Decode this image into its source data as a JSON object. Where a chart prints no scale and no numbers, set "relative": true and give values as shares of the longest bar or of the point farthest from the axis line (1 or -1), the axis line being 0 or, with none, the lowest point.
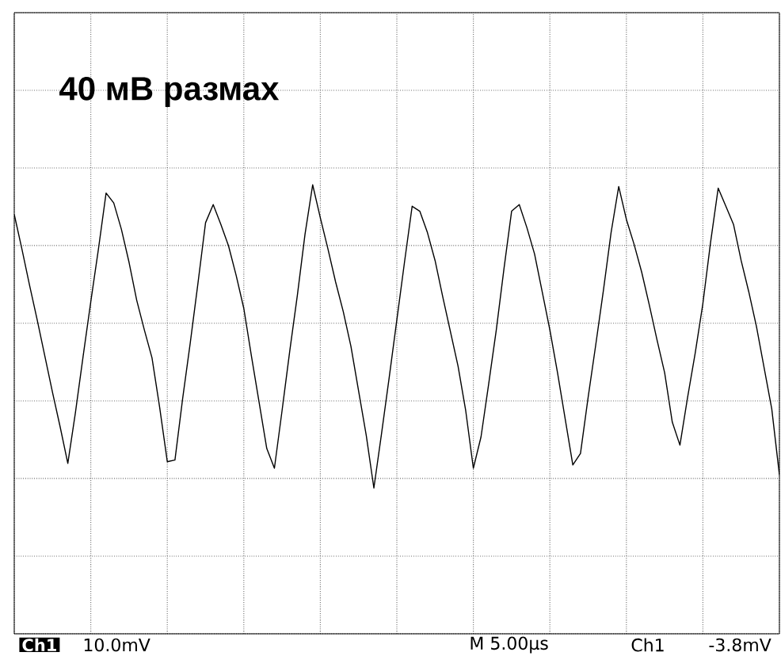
{
  "chart_data": {
    "type": "line",
    "relative": true,
    "grid": true,
    "color": "#000000",
    "categories": [
      null,
      null,
      null,
      null,
      null,
      null,
      null,
      null,
      null,
      null,
      null,
      null,
      null,
      null,
      null,
      null,
      null,
      null,
      null,
      null,
      null,
      null,
      null,
      null,
      null,
      null,
      null,
      null,
      null,
      null,
      null,
      null,
      null,
      null,
      null,
      null,
      null,
      null,
      null,
      null,
      null,
      null,
      null,
      null,
      null,
      null,
      null,
      null,
      null,
      null,
      null,
      null,
      null,
      null,
      null,
      null,
      null,
      null,
      null,
      null,
      null,
      null,
      null,
      null,
      null,
      null,
      null,
      null,
      null,
      null,
      null,
      null,
      null,
      null,
      null,
      null,
      null,
      null,
      null,
      null,
      null,
      null,
      null,
      null,
      null,
      null,
      null,
      null,
      null,
      null,
      null,
      null,
      null,
      null,
      null,
      null,
      null,
      null,
      null,
      null,
      null
    ],
    "values": [
      0.66,
      0.45,
      0.23,
      0.02,
      -0.2,
      -0.42,
      -0.63,
      -0.85,
      -0.54,
      -0.2,
      0.13,
      0.45,
      0.79,
      0.73,
      0.57,
      0.37,
      0.14,
      -0.04,
      -0.21,
      -0.51,
      -0.84,
      -0.83,
      -0.46,
      -0.12,
      0.24,
      0.61,
      0.72,
      0.6,
      0.47,
      0.29,
      0.09,
      -0.2,
      -0.48,
      -0.76,
      -0.88,
      -0.53,
      -0.17,
      0.17,
      0.54,
      0.84,
      0.64,
      0.45,
      0.25,
      0.07,
      -0.14,
      -0.41,
      -0.68,
      -1.0,
      -0.67,
      -0.33,
      0.02,
      0.37,
      0.71,
      0.68,
      0.55,
      0.38,
      0.16,
      -0.05,
      -0.26,
      -0.53,
      -0.88,
      -0.69,
      -0.37,
      -0.04,
      0.33,
      0.68,
      0.72,
      0.58,
      0.42,
      0.19,
      -0.04,
      -0.3,
      -0.58,
      -0.86,
      -0.79,
      -0.45,
      -0.13,
      0.2,
      0.55,
      0.83,
      0.63,
      0.48,
      0.31,
      0.11,
      -0.1,
      -0.3,
      -0.6,
      -0.74,
      -0.45,
      -0.18,
      0.12,
      0.49,
      0.82,
      0.71,
      0.6,
      0.38,
      0.19,
      -0.02,
      -0.27,
      -0.52,
      -0.92
    ],
    "annotations": [
      "40 мВ размах",
      "Ch1",
      "10.0mV",
      "M 5.00µs",
      "Ch1",
      "-3.8mV"
    ]
  }
}
